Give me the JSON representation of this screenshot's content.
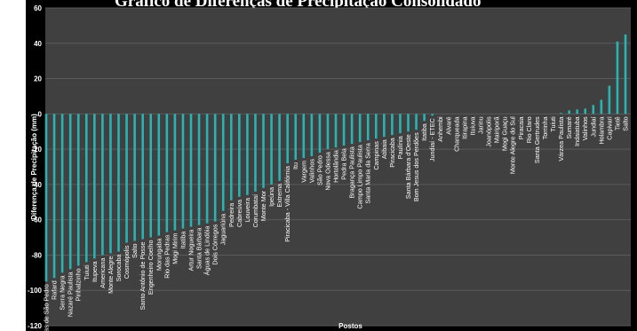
{
  "chart_data": {
    "type": "bar",
    "title": "Gráfico de Diferenças de Precipitação Consolidado",
    "xlabel": "Postos",
    "ylabel": "Diferença de Precipitação (mm)",
    "ylim": [
      -120,
      60
    ],
    "yticks": [
      60,
      40,
      20,
      0,
      -20,
      -40,
      -60,
      -80,
      -100,
      -120
    ],
    "grid": "horizontal",
    "colors": {
      "bar": "#2ab3b3",
      "plot_bg": "#404040",
      "frame_bg": "#000000",
      "grid": "#5a5a5a",
      "text": "#ffffff"
    },
    "categories": [
      "Águas de São Pedro",
      "Rafard",
      "Serra Negra",
      "Nazaré Paulista",
      "Pinhalzinho",
      "Tuiuti",
      "Itupeva",
      "Americana",
      "Monte Alegre",
      "Sorocaba",
      "Cosmópolis",
      "Salto",
      "Santo Antônio de Posse",
      "Engenheiro Coelho",
      "Morungaba",
      "Rio das Pedras",
      "Mogi Mirim",
      "Itatiba",
      "Artur Nogueira",
      "Santa Bárbara",
      "Águas de Lindóia",
      "Dois Córregos",
      "Jaguariúna",
      "Pedreira",
      "Cabreúva",
      "Louveira",
      "Corumbataí",
      "Monte Mor",
      "Ipeúna",
      "Extrema",
      "Piracicaba - Villa Califórnia",
      "Itu",
      "Vargem",
      "Valinhos",
      "São Pedro",
      "Nova Odessa",
      "Hortolândia",
      "Pedra Bela",
      "Bragança Paulista",
      "Campo Limpo Paulista",
      "Santa Maria da Serra",
      "Campinas",
      "Atibaia",
      "Piracicaba",
      "Paulínia",
      "Santa Bárbara d'Oeste",
      "Bom Jesus dos Perdões",
      "Itatiba",
      "Jundiaí - ETEC",
      "Anhembi",
      "Alvaré",
      "Charqueada",
      "Itirapina",
      "Ituiuva",
      "Jarinu",
      "Joanópolis",
      "Mairiporã",
      "Mogi Guaçu",
      "Monte Alegre do Sul",
      "Piracaia",
      "Rio Claro",
      "Santa Gertrudes",
      "Torrinha",
      "Tuiuti",
      "Várzea Paulista",
      "Sumaré",
      "Indaiatuba",
      "Valinhos",
      "Jundiaí",
      "Holambra",
      "Capivari",
      "Tietê",
      "Salto"
    ],
    "values": [
      -95,
      -93,
      -90,
      -88,
      -86,
      -84,
      -82,
      -80,
      -79,
      -78,
      -73,
      -72,
      -71,
      -70,
      -69,
      -67,
      -66,
      -65,
      -64,
      -63,
      -62,
      -61,
      -55,
      -49,
      -47,
      -46,
      -44,
      -42,
      -40,
      -38,
      -28,
      -26,
      -25,
      -24,
      -22,
      -20,
      -19,
      -18,
      -17,
      -16,
      -15,
      -14,
      -13,
      -12,
      -11,
      -10,
      -9,
      -4,
      -1,
      0,
      0,
      0,
      0,
      0,
      0,
      0,
      0,
      0,
      0,
      0,
      0,
      0,
      0,
      0,
      0.5,
      2,
      2.5,
      3,
      5,
      8,
      16,
      41,
      45
    ]
  }
}
